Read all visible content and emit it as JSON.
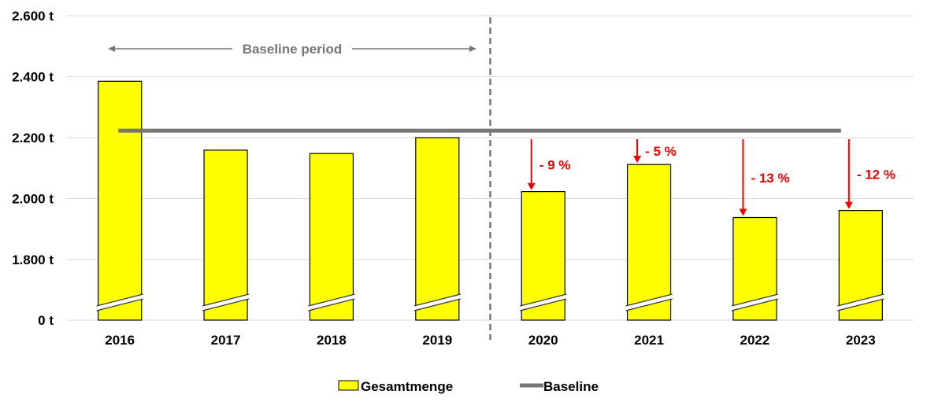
{
  "chart_data": {
    "type": "bar",
    "categories": [
      "2016",
      "2017",
      "2018",
      "2019",
      "2020",
      "2021",
      "2022",
      "2023"
    ],
    "series": [
      {
        "name": "Gesamtmenge",
        "type": "bar",
        "values": [
          2385,
          2159,
          2148,
          2200,
          2023,
          2112,
          1938,
          1961
        ]
      },
      {
        "name": "Baseline",
        "type": "line",
        "values": [
          2223,
          2223,
          2223,
          2223,
          2223,
          2223,
          2223,
          2223
        ]
      }
    ],
    "y_ticks": [
      0,
      1800,
      2000,
      2200,
      2400,
      2600
    ],
    "y_tick_labels": [
      "0 t",
      "1.800 t",
      "2.000 t",
      "2.200 t",
      "2.400 t",
      "2.600 t"
    ],
    "ylim": [
      0,
      2600
    ],
    "y_axis_break": [
      0,
      1800
    ],
    "grid": true,
    "legend": "bottom",
    "annotations": {
      "baseline_period_label": "Baseline period",
      "reductions": [
        {
          "category": "2020",
          "label": "- 9 %"
        },
        {
          "category": "2021",
          "label": "- 5 %"
        },
        {
          "category": "2022",
          "label": "- 13 %"
        },
        {
          "category": "2023",
          "label": "- 12 %"
        }
      ]
    },
    "colors": {
      "bar": "#FFFF00",
      "baseline": "#767676",
      "reduction": "#EE0000",
      "divider": "#767676",
      "grid": "#D9D9D9"
    }
  }
}
